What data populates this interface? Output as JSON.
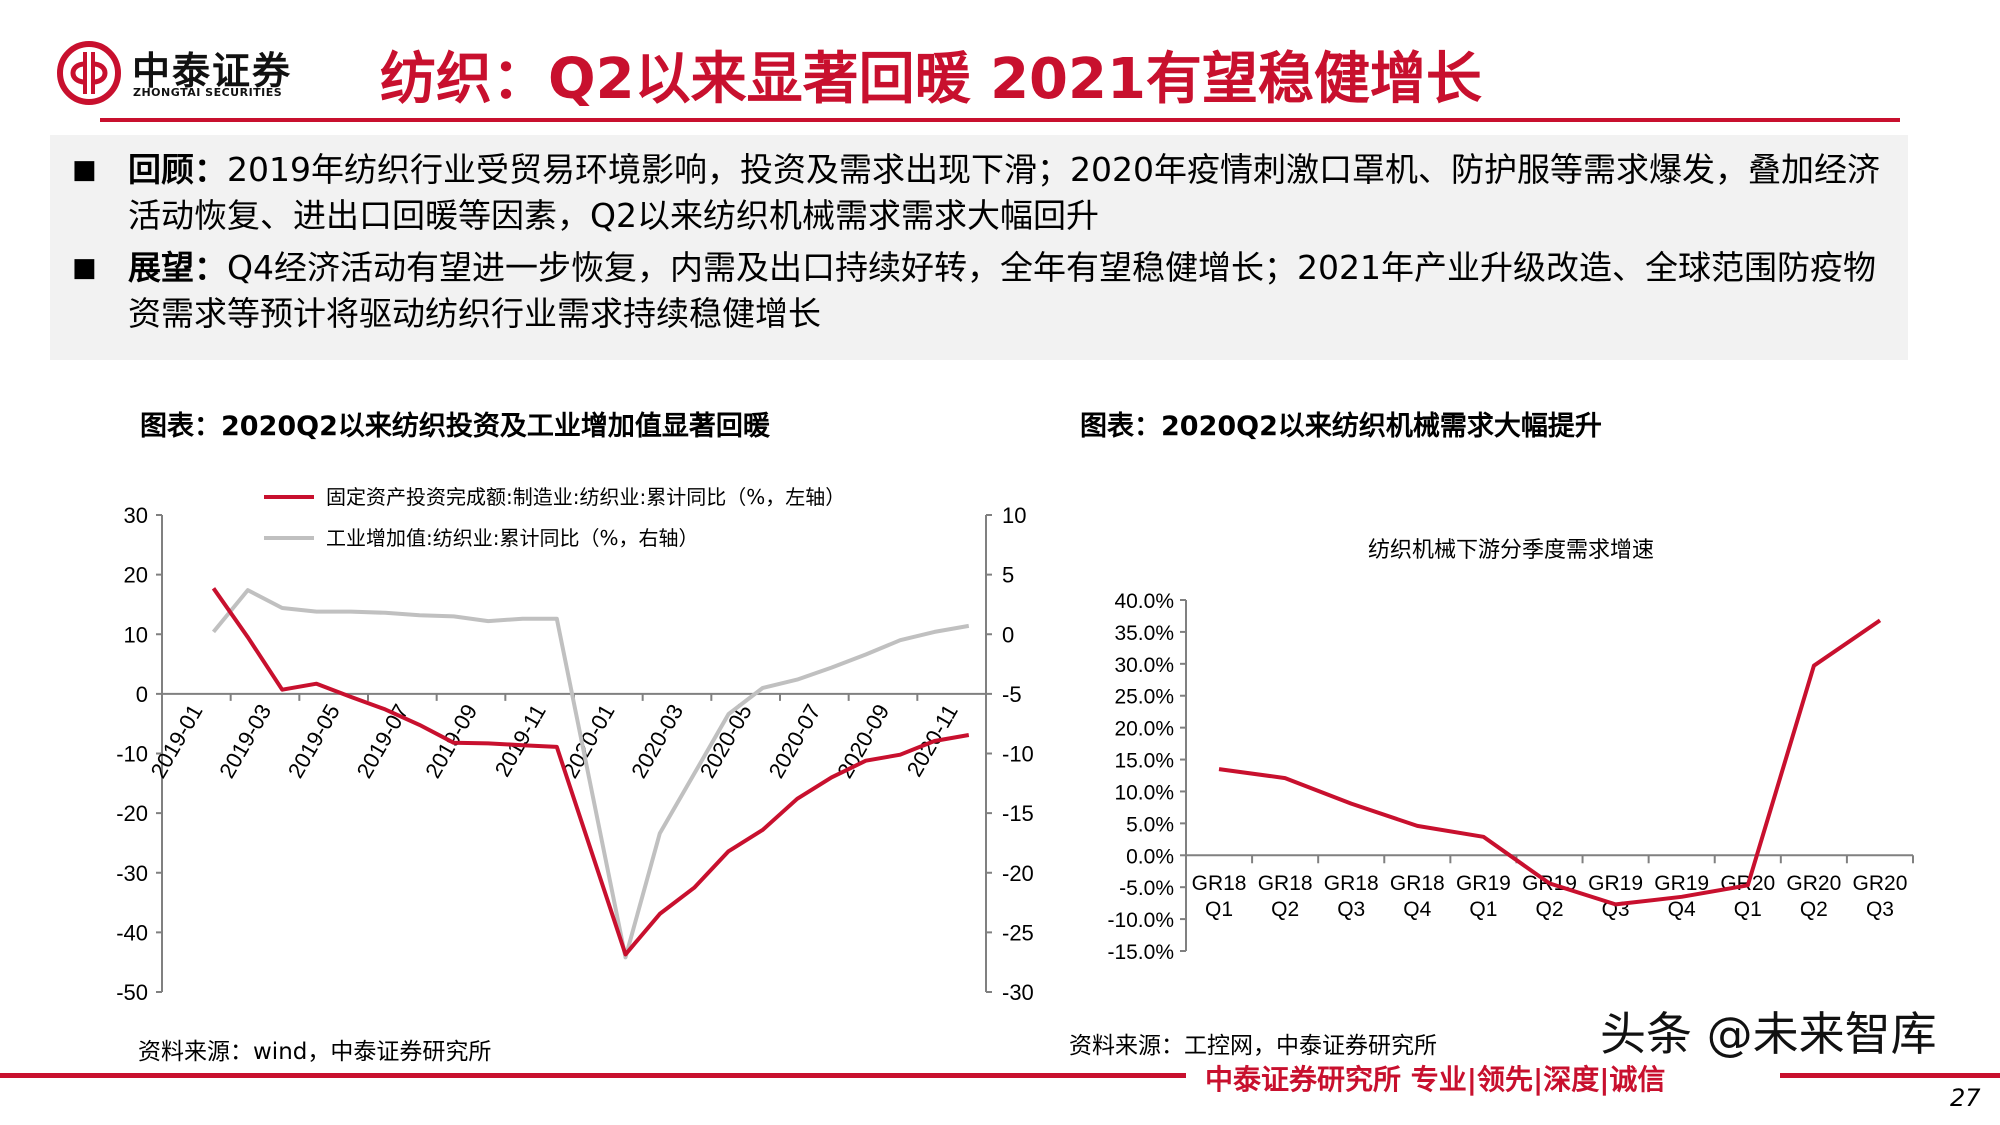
{
  "header": {
    "logo_cn": "中泰证券",
    "logo_en": "ZHONGTAI SECURITIES",
    "title": "纺织：Q2以来显著回暖 2021有望稳健增长",
    "brand_color": "#c8102e"
  },
  "summary": {
    "items": [
      {
        "label": "回顾：",
        "text": "2019年纺织行业受贸易环境影响，投资及需求出现下滑；2020年疫情刺激口罩机、防护服等需求爆发，叠加经济活动恢复、进出口回暖等因素，Q2以来纺织机械需求需求大幅回升"
      },
      {
        "label": "展望：",
        "text": "Q4经济活动有望进一步恢复，内需及出口持续好转，全年有望稳健增长；2021年产业升级改造、全球范围防疫物资需求等预计将驱动纺织行业需求持续稳健增长"
      }
    ],
    "bullet": "■"
  },
  "left_panel": {
    "title": "图表：2020Q2以来纺织投资及工业增加值显著回暖",
    "source": "资料来源：wind，中泰证券研究所"
  },
  "right_panel": {
    "title": "图表：2020Q2以来纺织机械需求大幅提升",
    "source": "资料来源：工控网，中泰证券研究所"
  },
  "chart_data": [
    {
      "type": "line",
      "title": "",
      "categories": [
        "2019-01",
        "2019-02",
        "2019-03",
        "2019-04",
        "2019-05",
        "2019-06",
        "2019-07",
        "2019-08",
        "2019-09",
        "2019-10",
        "2019-11",
        "2019-12",
        "2020-01",
        "2020-02",
        "2020-03",
        "2020-04",
        "2020-05",
        "2020-06",
        "2020-07",
        "2020-08",
        "2020-09",
        "2020-10",
        "2020-11",
        "2020-12"
      ],
      "tick_labels": [
        "2019-01",
        "2019-03",
        "2019-05",
        "2019-07",
        "2019-09",
        "2019-11",
        "2020-01",
        "2020-03",
        "2020-05",
        "2020-07",
        "2020-09",
        "2020-11"
      ],
      "ylim_left": [
        -50,
        30
      ],
      "yticks_left": [
        30,
        20,
        10,
        0,
        -10,
        -20,
        -30,
        -40,
        -50
      ],
      "ylim_right": [
        -30,
        10
      ],
      "yticks_right": [
        10,
        5,
        0,
        -5,
        -10,
        -15,
        -20,
        -25,
        -30
      ],
      "legend_placement": "top",
      "grid": false,
      "series": [
        {
          "name": "固定资产投资完成额:制造业:纺织业:累计同比（%，左轴）",
          "axis": "left",
          "color": "#c8102e",
          "values": [
            null,
            17.7,
            9.5,
            0.7,
            1.7,
            -0.5,
            -2.6,
            -5.2,
            -8.2,
            -8.3,
            -8.6,
            -8.9,
            null,
            -43.7,
            -36.9,
            -32.5,
            -26.4,
            -22.8,
            -17.6,
            -14.0,
            -11.2,
            -10.2,
            -7.9,
            -6.9
          ]
        },
        {
          "name": "工业增加值:纺织业:累计同比（%，右轴）",
          "axis": "right",
          "color": "#c0c0c0",
          "values": [
            null,
            0.2,
            3.7,
            2.2,
            1.9,
            1.9,
            1.8,
            1.6,
            1.5,
            1.1,
            1.3,
            1.3,
            null,
            -27.1,
            -16.7,
            -11.7,
            -6.7,
            -4.5,
            -3.8,
            -2.8,
            -1.7,
            -0.5,
            0.2,
            0.7
          ]
        }
      ]
    },
    {
      "type": "line",
      "title": "纺织机械下游分季度需求增速",
      "categories": [
        [
          "GR18",
          "Q1"
        ],
        [
          "GR18",
          "Q2"
        ],
        [
          "GR18",
          "Q3"
        ],
        [
          "GR18",
          "Q4"
        ],
        [
          "GR19",
          "Q1"
        ],
        [
          "GR19",
          "Q2"
        ],
        [
          "GR19",
          "Q3"
        ],
        [
          "GR19",
          "Q4"
        ],
        [
          "GR20",
          "Q1"
        ],
        [
          "GR20",
          "Q2"
        ],
        [
          "GR20",
          "Q3"
        ]
      ],
      "ylim": [
        -15,
        40
      ],
      "yticks": [
        "40.0%",
        "35.0%",
        "30.0%",
        "25.0%",
        "20.0%",
        "15.0%",
        "10.0%",
        "5.0%",
        "0.0%",
        "-5.0%",
        "-10.0%",
        "-15.0%"
      ],
      "grid": false,
      "series": [
        {
          "color": "#c8102e",
          "values": [
            13.5,
            12.1,
            8.1,
            4.6,
            2.9,
            -4.4,
            -7.7,
            -6.5,
            -4.7,
            29.7,
            36.8
          ]
        }
      ]
    }
  ],
  "footer": {
    "text": "中泰证券研究所 专业|领先|深度|诚信",
    "page_number": "27",
    "watermark": "头条 @未来智库"
  }
}
